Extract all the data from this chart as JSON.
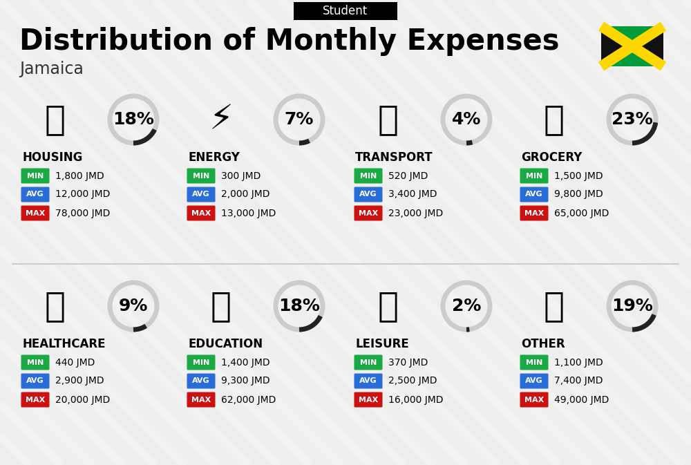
{
  "title": "Distribution of Monthly Expenses",
  "subtitle": "Student",
  "country": "Jamaica",
  "bg_color": "#eeeeee",
  "categories": [
    {
      "name": "HOUSING",
      "pct": 18,
      "min": "1,800 JMD",
      "avg": "12,000 JMD",
      "max": "78,000 JMD",
      "col": 0,
      "row": 0
    },
    {
      "name": "ENERGY",
      "pct": 7,
      "min": "300 JMD",
      "avg": "2,000 JMD",
      "max": "13,000 JMD",
      "col": 1,
      "row": 0
    },
    {
      "name": "TRANSPORT",
      "pct": 4,
      "min": "520 JMD",
      "avg": "3,400 JMD",
      "max": "23,000 JMD",
      "col": 2,
      "row": 0
    },
    {
      "name": "GROCERY",
      "pct": 23,
      "min": "1,500 JMD",
      "avg": "9,800 JMD",
      "max": "65,000 JMD",
      "col": 3,
      "row": 0
    },
    {
      "name": "HEALTHCARE",
      "pct": 9,
      "min": "440 JMD",
      "avg": "2,900 JMD",
      "max": "20,000 JMD",
      "col": 0,
      "row": 1
    },
    {
      "name": "EDUCATION",
      "pct": 18,
      "min": "1,400 JMD",
      "avg": "9,300 JMD",
      "max": "62,000 JMD",
      "col": 1,
      "row": 1
    },
    {
      "name": "LEISURE",
      "pct": 2,
      "min": "370 JMD",
      "avg": "2,500 JMD",
      "max": "16,000 JMD",
      "col": 2,
      "row": 1
    },
    {
      "name": "OTHER",
      "pct": 19,
      "min": "1,100 JMD",
      "avg": "7,400 JMD",
      "max": "49,000 JMD",
      "col": 3,
      "row": 1
    }
  ],
  "min_color": "#1aaa44",
  "avg_color": "#2a6dd9",
  "max_color": "#cc1111",
  "pct_arc_dark": "#222222",
  "pct_arc_light": "#cccccc",
  "flag_black": "#111111",
  "flag_green": "#009b3a",
  "flag_yellow": "#ffd700",
  "stripe_color": "#ffffff",
  "stripe_alpha": 0.25,
  "title_fontsize": 30,
  "country_fontsize": 17,
  "subtitle_fontsize": 12,
  "cat_name_fontsize": 12,
  "val_fontsize": 10,
  "pct_fontsize": 18,
  "badge_fontsize": 8
}
